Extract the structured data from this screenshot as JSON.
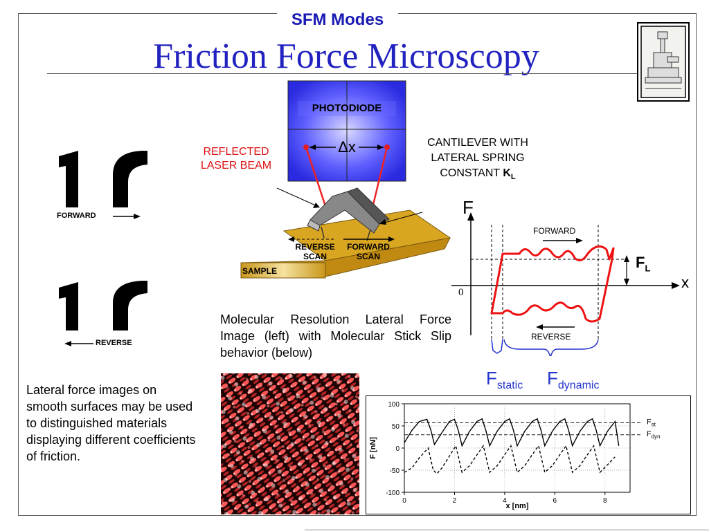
{
  "header": {
    "tag": "SFM Modes",
    "title": "Friction Force Microscopy"
  },
  "left_panel": {
    "forward_label": "FORWARD",
    "reverse_label": "REVERSE",
    "description": "Lateral force images on smooth surfaces may be used to distinguished materials displaying different coefficients of friction."
  },
  "apparatus": {
    "photodiode_label": "PHOTODIODE",
    "delta_label": "Δx",
    "reflected_beam_label": "REFLECTED LASER BEAM",
    "cantilever_label": "CANTILEVER WITH LATERAL SPRING CONSTANT",
    "spring_constant_symbol": "K",
    "spring_constant_sub": "L",
    "reverse_scan_label": "REVERSE SCAN",
    "forward_scan_label": "FORWARD SCAN",
    "sample_label": "SAMPLE",
    "colors": {
      "photodiode": "#3b3bf0",
      "sample": "#d4a020",
      "beam": "#ee2222"
    }
  },
  "friction_loop": {
    "y_axis_label": "F",
    "x_axis_label": "x",
    "origin_label": "0",
    "forward_label": "FORWARD",
    "reverse_label": "REVERSE",
    "fl_symbol": "F",
    "fl_sub": "L",
    "fstatic_symbol": "F",
    "fstatic_sub": "static",
    "fdynamic_symbol": "F",
    "fdynamic_sub": "dynamic",
    "colors": {
      "loop": "#ee1111",
      "braces": "#2233cc"
    }
  },
  "caption": "Molecular Resolution Lateral Force Image (left) with Molecular Stick Slip behavior (below)",
  "chart_data": {
    "type": "line",
    "xlabel": "x [nm]",
    "ylabel": "F [nN]",
    "xlim": [
      0,
      9
    ],
    "ylim": [
      -100,
      100
    ],
    "xticks": [
      0,
      2,
      4,
      6,
      8
    ],
    "xtick_labels": [
      "0",
      "2",
      "4",
      "6",
      "8"
    ],
    "yticks": [
      100,
      50,
      0,
      -50,
      -100
    ],
    "ytick_labels": [
      "100",
      "50",
      "0",
      "-50",
      "-100"
    ],
    "reference_lines": [
      {
        "label_main": "F",
        "label_sub": "st",
        "y": 57
      },
      {
        "label_main": "F",
        "label_sub": "dyn",
        "y": 30
      }
    ],
    "series": [
      {
        "style": "solid",
        "x": [
          0.0,
          0.3,
          0.6,
          0.9,
          1.05,
          1.2,
          1.5,
          1.8,
          2.0,
          2.15,
          2.3,
          2.6,
          2.9,
          3.1,
          3.25,
          3.4,
          3.7,
          4.0,
          4.2,
          4.35,
          4.5,
          4.8,
          5.1,
          5.3,
          5.45,
          5.6,
          5.9,
          6.2,
          6.4,
          6.55,
          6.7,
          7.0,
          7.3,
          7.5,
          7.65,
          7.8,
          8.1,
          8.4,
          8.55
        ],
        "y": [
          12,
          40,
          60,
          65,
          42,
          8,
          35,
          60,
          65,
          40,
          5,
          38,
          60,
          66,
          40,
          5,
          38,
          60,
          66,
          40,
          5,
          38,
          60,
          66,
          40,
          5,
          38,
          60,
          66,
          40,
          5,
          38,
          60,
          66,
          40,
          5,
          38,
          60,
          5
        ]
      },
      {
        "style": "dashed",
        "x": [
          0.0,
          0.3,
          0.6,
          0.95,
          1.15,
          1.3,
          1.5,
          1.8,
          2.05,
          2.3,
          2.6,
          2.9,
          3.15,
          3.4,
          3.7,
          4.0,
          4.25,
          4.5,
          4.8,
          5.1,
          5.35,
          5.6,
          5.9,
          6.2,
          6.45,
          6.7,
          7.0,
          7.3,
          7.55,
          7.8,
          8.1,
          8.4
        ],
        "y": [
          -55,
          -45,
          -22,
          0,
          -50,
          -58,
          -45,
          -18,
          5,
          -55,
          -40,
          -15,
          5,
          -55,
          -40,
          -15,
          5,
          -55,
          -40,
          -15,
          5,
          -55,
          -40,
          -15,
          5,
          -55,
          -40,
          -15,
          5,
          -55,
          -38,
          -20
        ]
      }
    ]
  }
}
